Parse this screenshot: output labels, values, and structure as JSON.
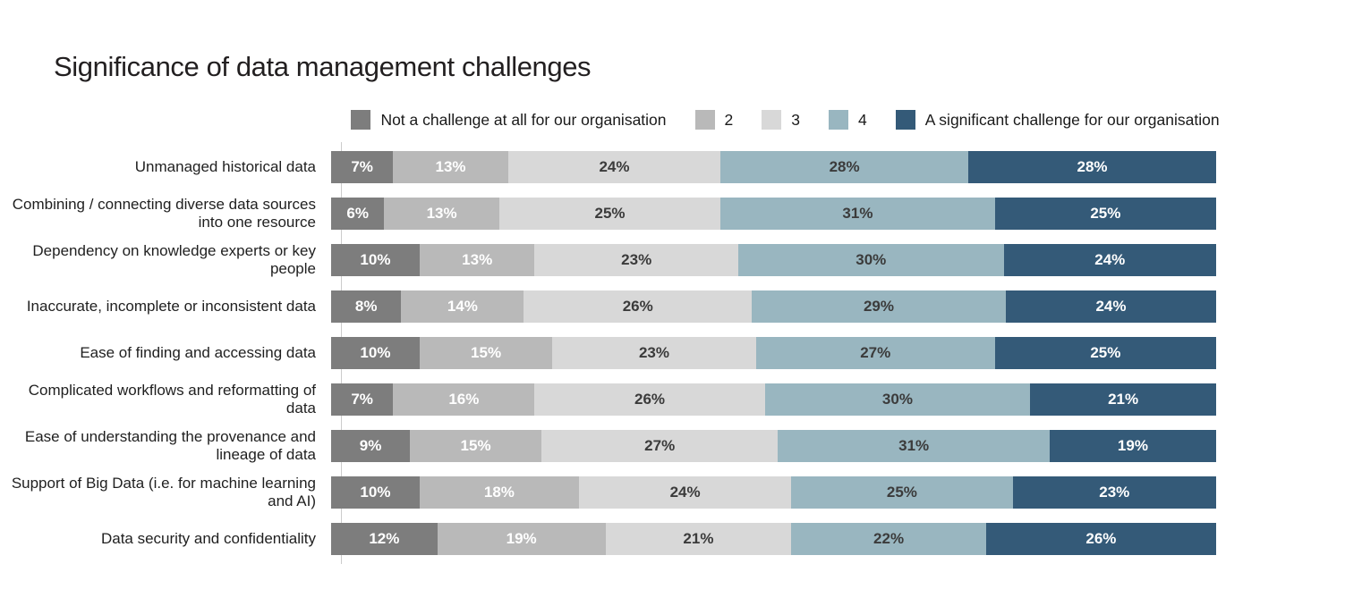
{
  "title": "Significance of data management challenges",
  "chart_data": {
    "type": "bar",
    "orientation": "horizontal",
    "stacked": true,
    "unit": "%",
    "legend_position": "top",
    "value_labels": "inside",
    "grid": false,
    "xlim": [
      0,
      100
    ],
    "categories": [
      "Unmanaged historical data",
      "Combining / connecting diverse data sources into one resource",
      "Dependency on knowledge experts or key people",
      "Inaccurate, incomplete or inconsistent data",
      "Ease of finding and accessing data",
      "Complicated workflows and reformatting of data",
      "Ease of understanding the provenance and lineage of data",
      "Support of Big Data (i.e. for machine learning and AI)",
      "Data security and confidentiality"
    ],
    "series": [
      {
        "name": "Not a challenge at all for our organisation",
        "color": "#7d7d7d",
        "text_color": "#ffffff",
        "values": [
          7,
          6,
          10,
          8,
          10,
          7,
          9,
          10,
          12
        ]
      },
      {
        "name": "2",
        "color": "#b9b9b9",
        "text_color": "#ffffff",
        "values": [
          13,
          13,
          13,
          14,
          15,
          16,
          15,
          18,
          19
        ]
      },
      {
        "name": "3",
        "color": "#d8d8d8",
        "text_color": "#3b3b3b",
        "values": [
          24,
          25,
          23,
          26,
          23,
          26,
          27,
          24,
          21
        ]
      },
      {
        "name": "4",
        "color": "#99b6c0",
        "text_color": "#3b3b3b",
        "values": [
          28,
          31,
          30,
          29,
          27,
          30,
          31,
          25,
          22
        ]
      },
      {
        "name": "A significant challenge for our organisation",
        "color": "#345a78",
        "text_color": "#ffffff",
        "values": [
          28,
          25,
          24,
          24,
          25,
          21,
          19,
          23,
          26
        ]
      }
    ]
  }
}
